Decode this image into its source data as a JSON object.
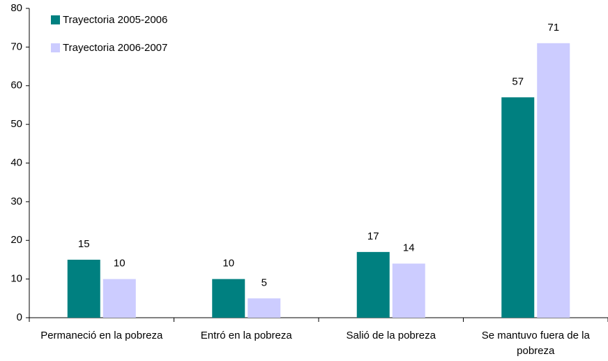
{
  "chart_data": {
    "type": "bar",
    "categories": [
      "Permaneció en la pobreza",
      "Entró en la pobreza",
      "Salió de la pobreza",
      "Se mantuvo fuera de la pobreza"
    ],
    "series": [
      {
        "name": "Trayectoria 2005-2006",
        "color": "#008080",
        "values": [
          15,
          10,
          17,
          57
        ]
      },
      {
        "name": "Trayectoria 2006-2007",
        "color": "#ccccff",
        "values": [
          10,
          5,
          14,
          71
        ]
      }
    ],
    "ylim": [
      0,
      80
    ],
    "yticks": [
      0,
      10,
      20,
      30,
      40,
      50,
      60,
      70,
      80
    ],
    "grid": false,
    "legend": "top-left"
  }
}
